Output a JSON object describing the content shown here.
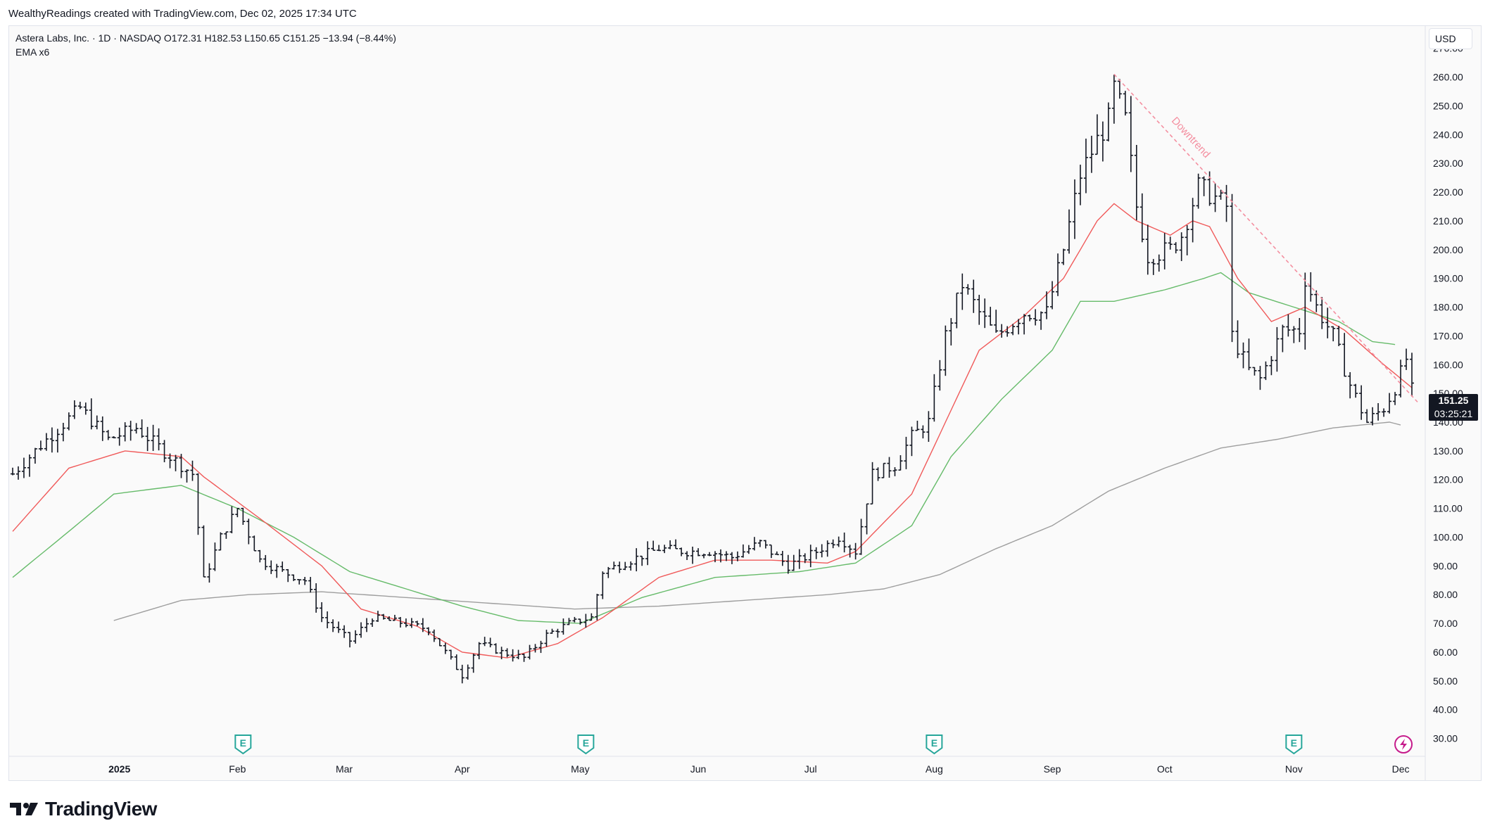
{
  "caption": "WealthyReadings created with TradingView.com, Dec 02, 2025 17:34 UTC",
  "legend": {
    "line1": "Astera Labs, Inc. · 1D · NASDAQ  O172.31  H182.53  L150.65  C151.25  −13.94 (−8.44%)",
    "line2": "EMA x6"
  },
  "currency_label": "USD",
  "last_price": "151.25",
  "countdown": "03:25:21",
  "brand": "TradingView",
  "annotation": "Downtrend",
  "earnings_marker": "E",
  "colors": {
    "bar": "#131722",
    "ema_fast": "#f05a5a",
    "ema_mid": "#66bb6a",
    "ema_slow": "#9e9e9e",
    "trendline": "#f48fa0",
    "earnings": "#26a69a",
    "lightning": "#c61c8c"
  },
  "chart_data": {
    "type": "ohlc",
    "title": "Astera Labs, Inc. · 1D · NASDAQ",
    "currency": "USD",
    "ylim": [
      25,
      278
    ],
    "y_ticks": [
      270,
      260,
      250,
      240,
      230,
      220,
      210,
      200,
      190,
      180,
      170,
      160,
      150,
      140,
      130,
      120,
      110,
      100,
      90,
      80,
      70,
      60,
      50,
      40,
      30
    ],
    "x_ticks": [
      {
        "label": "2025",
        "bar": 19
      },
      {
        "label": "Feb",
        "bar": 40
      },
      {
        "label": "Mar",
        "bar": 59
      },
      {
        "label": "Apr",
        "bar": 80
      },
      {
        "label": "May",
        "bar": 101
      },
      {
        "label": "Jun",
        "bar": 122
      },
      {
        "label": "Jul",
        "bar": 142
      },
      {
        "label": "Aug",
        "bar": 164
      },
      {
        "label": "Sep",
        "bar": 185
      },
      {
        "label": "Oct",
        "bar": 205
      },
      {
        "label": "Nov",
        "bar": 228
      },
      {
        "label": "Dec",
        "bar": 247
      }
    ],
    "bar_count": 250,
    "price_path": [
      [
        0,
        122
      ],
      [
        5,
        132
      ],
      [
        12,
        145
      ],
      [
        17,
        134
      ],
      [
        22,
        138
      ],
      [
        25,
        133
      ],
      [
        28,
        128
      ],
      [
        32,
        122
      ],
      [
        34,
        85
      ],
      [
        37,
        100
      ],
      [
        40,
        110
      ],
      [
        44,
        92
      ],
      [
        48,
        88
      ],
      [
        52,
        85
      ],
      [
        55,
        72
      ],
      [
        60,
        64
      ],
      [
        64,
        72
      ],
      [
        70,
        70
      ],
      [
        74,
        68
      ],
      [
        77,
        60
      ],
      [
        80,
        52
      ],
      [
        83,
        63
      ],
      [
        87,
        60
      ],
      [
        91,
        58
      ],
      [
        95,
        66
      ],
      [
        99,
        70
      ],
      [
        103,
        72
      ],
      [
        105,
        88
      ],
      [
        110,
        92
      ],
      [
        115,
        96
      ],
      [
        120,
        95
      ],
      [
        124,
        95
      ],
      [
        128,
        93
      ],
      [
        133,
        98
      ],
      [
        138,
        90
      ],
      [
        143,
        95
      ],
      [
        147,
        100
      ],
      [
        150,
        95
      ],
      [
        153,
        122
      ],
      [
        157,
        125
      ],
      [
        160,
        135
      ],
      [
        163,
        140
      ],
      [
        166,
        170
      ],
      [
        169,
        188
      ],
      [
        172,
        178
      ],
      [
        175,
        170
      ],
      [
        180,
        178
      ],
      [
        184,
        178
      ],
      [
        187,
        200
      ],
      [
        190,
        226
      ],
      [
        193,
        238
      ],
      [
        195,
        245
      ],
      [
        196,
        256
      ],
      [
        198,
        245
      ],
      [
        200,
        215
      ],
      [
        202,
        198
      ],
      [
        206,
        200
      ],
      [
        208,
        205
      ],
      [
        211,
        222
      ],
      [
        214,
        218
      ],
      [
        216,
        215
      ],
      [
        217,
        170
      ],
      [
        220,
        158
      ],
      [
        222,
        155
      ],
      [
        226,
        172
      ],
      [
        229,
        172
      ],
      [
        230,
        190
      ],
      [
        232,
        180
      ],
      [
        235,
        170
      ],
      [
        238,
        153
      ],
      [
        241,
        140
      ],
      [
        244,
        145
      ],
      [
        246,
        152
      ],
      [
        248,
        162
      ],
      [
        249,
        151
      ]
    ],
    "ema_fast": [
      [
        0,
        102
      ],
      [
        10,
        124
      ],
      [
        20,
        130
      ],
      [
        30,
        128
      ],
      [
        34,
        121
      ],
      [
        45,
        105
      ],
      [
        55,
        90
      ],
      [
        62,
        75
      ],
      [
        72,
        69
      ],
      [
        80,
        60
      ],
      [
        88,
        58
      ],
      [
        97,
        63
      ],
      [
        105,
        72
      ],
      [
        115,
        86
      ],
      [
        125,
        92
      ],
      [
        135,
        92
      ],
      [
        145,
        91
      ],
      [
        150,
        95
      ],
      [
        160,
        115
      ],
      [
        166,
        140
      ],
      [
        172,
        165
      ],
      [
        180,
        177
      ],
      [
        187,
        190
      ],
      [
        193,
        210
      ],
      [
        196,
        216
      ],
      [
        200,
        210
      ],
      [
        206,
        205
      ],
      [
        210,
        210
      ],
      [
        213,
        208
      ],
      [
        218,
        190
      ],
      [
        224,
        175
      ],
      [
        230,
        180
      ],
      [
        237,
        172
      ],
      [
        244,
        160
      ],
      [
        249,
        152
      ]
    ],
    "ema_mid": [
      [
        0,
        86
      ],
      [
        10,
        102
      ],
      [
        18,
        115
      ],
      [
        30,
        118
      ],
      [
        40,
        110
      ],
      [
        50,
        100
      ],
      [
        60,
        88
      ],
      [
        70,
        82
      ],
      [
        80,
        76
      ],
      [
        90,
        71
      ],
      [
        101,
        70
      ],
      [
        112,
        79
      ],
      [
        125,
        86
      ],
      [
        140,
        88
      ],
      [
        150,
        91
      ],
      [
        160,
        104
      ],
      [
        167,
        128
      ],
      [
        176,
        148
      ],
      [
        185,
        165
      ],
      [
        190,
        182
      ],
      [
        196,
        182
      ],
      [
        205,
        186
      ],
      [
        212,
        190
      ],
      [
        215,
        192
      ],
      [
        220,
        185
      ],
      [
        228,
        180
      ],
      [
        236,
        175
      ],
      [
        242,
        168
      ],
      [
        246,
        167
      ]
    ],
    "ema_slow": [
      [
        18,
        71
      ],
      [
        30,
        78
      ],
      [
        42,
        80
      ],
      [
        55,
        81
      ],
      [
        70,
        79
      ],
      [
        85,
        77
      ],
      [
        100,
        75
      ],
      [
        115,
        76
      ],
      [
        130,
        78
      ],
      [
        145,
        80
      ],
      [
        155,
        82
      ],
      [
        165,
        87
      ],
      [
        175,
        96
      ],
      [
        185,
        104
      ],
      [
        195,
        116
      ],
      [
        205,
        124
      ],
      [
        215,
        131
      ],
      [
        225,
        134
      ],
      [
        235,
        138
      ],
      [
        245,
        140
      ],
      [
        247,
        139
      ]
    ],
    "trendline": {
      "from": {
        "bar": 196,
        "price": 261
      },
      "to": {
        "bar": 250,
        "price": 147
      }
    },
    "earnings_bars": [
      41,
      102,
      164,
      228
    ]
  }
}
